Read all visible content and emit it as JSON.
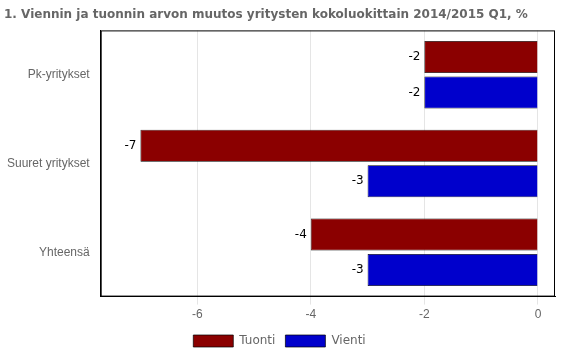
{
  "chart_data": {
    "type": "bar",
    "orientation": "horizontal",
    "title": "1. Viennin ja tuonnin arvon muutos yritysten kokoluokittain 2014/2015 Q1, %",
    "categories": [
      "Yhteensä",
      "Suuret yritykset",
      "Pk-yritykset"
    ],
    "series": [
      {
        "name": "Tuonti",
        "color": "#8B0000",
        "values": [
          -4,
          -7,
          -2
        ]
      },
      {
        "name": "Vienti",
        "color": "#0000CC",
        "values": [
          -3,
          -3,
          -2
        ]
      }
    ],
    "xlim": [
      -7.7,
      0.3
    ],
    "xticks": [
      -6,
      -4,
      -2,
      0
    ],
    "grid": true,
    "legend": "bottom",
    "data_labels": true
  }
}
